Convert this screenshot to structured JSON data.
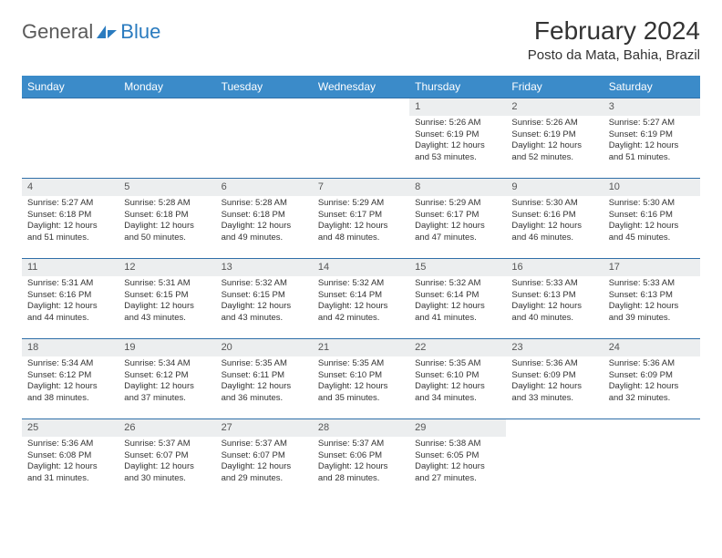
{
  "logo": {
    "general": "General",
    "blue": "Blue"
  },
  "title": "February 2024",
  "location": "Posto da Mata, Bahia, Brazil",
  "colors": {
    "header_bg": "#3b8bc9",
    "header_text": "#ffffff",
    "daynum_bg": "#eceeef",
    "border": "#2f6fa8",
    "logo_blue": "#2a7bbf",
    "logo_gray": "#5a5a5a"
  },
  "weekdays": [
    "Sunday",
    "Monday",
    "Tuesday",
    "Wednesday",
    "Thursday",
    "Friday",
    "Saturday"
  ],
  "weeks": [
    [
      null,
      null,
      null,
      null,
      {
        "n": "1",
        "sr": "Sunrise: 5:26 AM",
        "ss": "Sunset: 6:19 PM",
        "dl": "Daylight: 12 hours and 53 minutes."
      },
      {
        "n": "2",
        "sr": "Sunrise: 5:26 AM",
        "ss": "Sunset: 6:19 PM",
        "dl": "Daylight: 12 hours and 52 minutes."
      },
      {
        "n": "3",
        "sr": "Sunrise: 5:27 AM",
        "ss": "Sunset: 6:19 PM",
        "dl": "Daylight: 12 hours and 51 minutes."
      }
    ],
    [
      {
        "n": "4",
        "sr": "Sunrise: 5:27 AM",
        "ss": "Sunset: 6:18 PM",
        "dl": "Daylight: 12 hours and 51 minutes."
      },
      {
        "n": "5",
        "sr": "Sunrise: 5:28 AM",
        "ss": "Sunset: 6:18 PM",
        "dl": "Daylight: 12 hours and 50 minutes."
      },
      {
        "n": "6",
        "sr": "Sunrise: 5:28 AM",
        "ss": "Sunset: 6:18 PM",
        "dl": "Daylight: 12 hours and 49 minutes."
      },
      {
        "n": "7",
        "sr": "Sunrise: 5:29 AM",
        "ss": "Sunset: 6:17 PM",
        "dl": "Daylight: 12 hours and 48 minutes."
      },
      {
        "n": "8",
        "sr": "Sunrise: 5:29 AM",
        "ss": "Sunset: 6:17 PM",
        "dl": "Daylight: 12 hours and 47 minutes."
      },
      {
        "n": "9",
        "sr": "Sunrise: 5:30 AM",
        "ss": "Sunset: 6:16 PM",
        "dl": "Daylight: 12 hours and 46 minutes."
      },
      {
        "n": "10",
        "sr": "Sunrise: 5:30 AM",
        "ss": "Sunset: 6:16 PM",
        "dl": "Daylight: 12 hours and 45 minutes."
      }
    ],
    [
      {
        "n": "11",
        "sr": "Sunrise: 5:31 AM",
        "ss": "Sunset: 6:16 PM",
        "dl": "Daylight: 12 hours and 44 minutes."
      },
      {
        "n": "12",
        "sr": "Sunrise: 5:31 AM",
        "ss": "Sunset: 6:15 PM",
        "dl": "Daylight: 12 hours and 43 minutes."
      },
      {
        "n": "13",
        "sr": "Sunrise: 5:32 AM",
        "ss": "Sunset: 6:15 PM",
        "dl": "Daylight: 12 hours and 43 minutes."
      },
      {
        "n": "14",
        "sr": "Sunrise: 5:32 AM",
        "ss": "Sunset: 6:14 PM",
        "dl": "Daylight: 12 hours and 42 minutes."
      },
      {
        "n": "15",
        "sr": "Sunrise: 5:32 AM",
        "ss": "Sunset: 6:14 PM",
        "dl": "Daylight: 12 hours and 41 minutes."
      },
      {
        "n": "16",
        "sr": "Sunrise: 5:33 AM",
        "ss": "Sunset: 6:13 PM",
        "dl": "Daylight: 12 hours and 40 minutes."
      },
      {
        "n": "17",
        "sr": "Sunrise: 5:33 AM",
        "ss": "Sunset: 6:13 PM",
        "dl": "Daylight: 12 hours and 39 minutes."
      }
    ],
    [
      {
        "n": "18",
        "sr": "Sunrise: 5:34 AM",
        "ss": "Sunset: 6:12 PM",
        "dl": "Daylight: 12 hours and 38 minutes."
      },
      {
        "n": "19",
        "sr": "Sunrise: 5:34 AM",
        "ss": "Sunset: 6:12 PM",
        "dl": "Daylight: 12 hours and 37 minutes."
      },
      {
        "n": "20",
        "sr": "Sunrise: 5:35 AM",
        "ss": "Sunset: 6:11 PM",
        "dl": "Daylight: 12 hours and 36 minutes."
      },
      {
        "n": "21",
        "sr": "Sunrise: 5:35 AM",
        "ss": "Sunset: 6:10 PM",
        "dl": "Daylight: 12 hours and 35 minutes."
      },
      {
        "n": "22",
        "sr": "Sunrise: 5:35 AM",
        "ss": "Sunset: 6:10 PM",
        "dl": "Daylight: 12 hours and 34 minutes."
      },
      {
        "n": "23",
        "sr": "Sunrise: 5:36 AM",
        "ss": "Sunset: 6:09 PM",
        "dl": "Daylight: 12 hours and 33 minutes."
      },
      {
        "n": "24",
        "sr": "Sunrise: 5:36 AM",
        "ss": "Sunset: 6:09 PM",
        "dl": "Daylight: 12 hours and 32 minutes."
      }
    ],
    [
      {
        "n": "25",
        "sr": "Sunrise: 5:36 AM",
        "ss": "Sunset: 6:08 PM",
        "dl": "Daylight: 12 hours and 31 minutes."
      },
      {
        "n": "26",
        "sr": "Sunrise: 5:37 AM",
        "ss": "Sunset: 6:07 PM",
        "dl": "Daylight: 12 hours and 30 minutes."
      },
      {
        "n": "27",
        "sr": "Sunrise: 5:37 AM",
        "ss": "Sunset: 6:07 PM",
        "dl": "Daylight: 12 hours and 29 minutes."
      },
      {
        "n": "28",
        "sr": "Sunrise: 5:37 AM",
        "ss": "Sunset: 6:06 PM",
        "dl": "Daylight: 12 hours and 28 minutes."
      },
      {
        "n": "29",
        "sr": "Sunrise: 5:38 AM",
        "ss": "Sunset: 6:05 PM",
        "dl": "Daylight: 12 hours and 27 minutes."
      },
      null,
      null
    ]
  ]
}
